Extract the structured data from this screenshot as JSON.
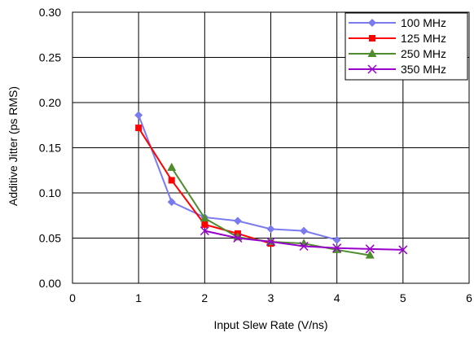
{
  "chart_data": {
    "type": "line",
    "xlabel": "Input Slew Rate (V/ns)",
    "ylabel": "Additive Jitter (ps RMS)",
    "xlim": [
      0,
      6
    ],
    "ylim": [
      0,
      0.3
    ],
    "x_ticks": [
      "0",
      "1",
      "2",
      "3",
      "4",
      "5",
      "6"
    ],
    "y_ticks": [
      "0.00",
      "0.05",
      "0.10",
      "0.15",
      "0.20",
      "0.25",
      "0.30"
    ],
    "grid": true,
    "legend_position": "top-right",
    "series": [
      {
        "name": "100 MHz",
        "color": "#7b7bf0",
        "marker": "diamond",
        "x": [
          1,
          1.5,
          2,
          2.5,
          3,
          3.5,
          4
        ],
        "y": [
          0.186,
          0.09,
          0.073,
          0.069,
          0.06,
          0.058,
          0.048
        ]
      },
      {
        "name": "125 MHz",
        "color": "#ff0000",
        "marker": "square",
        "x": [
          1,
          1.5,
          2,
          2.5,
          3
        ],
        "y": [
          0.172,
          0.114,
          0.065,
          0.055,
          0.044
        ]
      },
      {
        "name": "250 MHz",
        "color": "#4e8c2e",
        "marker": "triangle",
        "x": [
          1.5,
          2,
          2.5,
          3,
          3.5,
          4,
          4.5
        ],
        "y": [
          0.128,
          0.072,
          0.051,
          0.046,
          0.044,
          0.037,
          0.031
        ]
      },
      {
        "name": "350 MHz",
        "color": "#9900cc",
        "marker": "x",
        "x": [
          2,
          2.5,
          3,
          3.5,
          4,
          4.5,
          5
        ],
        "y": [
          0.058,
          0.05,
          0.046,
          0.041,
          0.039,
          0.038,
          0.037
        ]
      }
    ]
  }
}
